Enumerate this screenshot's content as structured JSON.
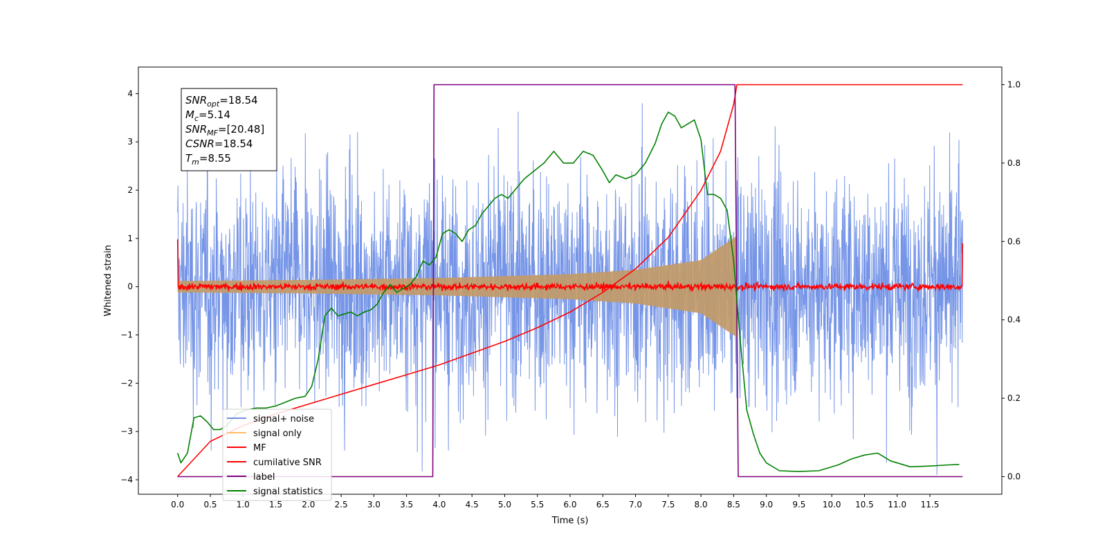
{
  "chart_data": {
    "type": "line",
    "xlabel": "Time (s)",
    "ylabel_left": "Whitened strain",
    "ylabel_right": "",
    "xlim": [
      -0.6,
      12.6
    ],
    "ylim_left": [
      -4.3,
      4.55
    ],
    "ylim_right": [
      -0.045,
      1.045
    ],
    "x_ticks": [
      "0.0",
      "0.5",
      "1.0",
      "1.5",
      "2.0",
      "2.5",
      "3.0",
      "3.5",
      "4.0",
      "4.5",
      "5.0",
      "5.5",
      "6.0",
      "6.5",
      "7.0",
      "7.5",
      "8.0",
      "8.5",
      "9.0",
      "9.5",
      "10.0",
      "10.5",
      "11.0",
      "11.5"
    ],
    "y_ticks_left": [
      "−4",
      "−3",
      "−2",
      "−1",
      "0",
      "1",
      "2",
      "3",
      "4"
    ],
    "y_ticks_right": [
      "0.0",
      "0.2",
      "0.4",
      "0.6",
      "0.8",
      "1.0"
    ],
    "grid": false,
    "legend_position": "lower-left",
    "info_box": [
      {
        "sym": "SNR",
        "sub": "opt",
        "value": "=18.54"
      },
      {
        "sym": "M",
        "sub": "c",
        "value": "=5.14"
      },
      {
        "sym": "SNR",
        "sub": "MF",
        "value": "=[20.48]"
      },
      {
        "sym": "CSNR",
        "sub": "",
        "value": "=18.54"
      },
      {
        "sym": "T",
        "sub": "m",
        "value": "=8.55"
      }
    ],
    "series": [
      {
        "name": "signal+ noise",
        "axis": "left",
        "color": "#6f8fe6",
        "x_range": [
          0.0,
          12.0
        ],
        "typical_amplitude": [
          -2.6,
          2.6
        ],
        "peak_amplitude": [
          -3.9,
          4.0
        ]
      },
      {
        "name": "signal only",
        "axis": "left",
        "color": "#ffbb66",
        "x_range": [
          0.0,
          8.55
        ],
        "envelope_amplitude": [
          [
            0.0,
            0.12
          ],
          [
            2.0,
            0.14
          ],
          [
            4.0,
            0.18
          ],
          [
            6.0,
            0.26
          ],
          [
            7.0,
            0.35
          ],
          [
            8.0,
            0.55
          ],
          [
            8.55,
            1.05
          ]
        ]
      },
      {
        "name": "MF",
        "axis": "left",
        "color": "#ff0000",
        "x_range": [
          0.0,
          12.0
        ],
        "baseline": 0.0,
        "noise_amplitude": 0.1,
        "edge_values": [
          0.98,
          0.9
        ]
      },
      {
        "name": "cumilative SNR",
        "axis": "right",
        "color": "#ff0000",
        "x": [
          0.0,
          0.5,
          1.0,
          1.5,
          2.0,
          2.5,
          3.0,
          3.5,
          4.0,
          4.5,
          5.0,
          5.5,
          6.0,
          6.5,
          7.0,
          7.5,
          8.0,
          8.3,
          8.5,
          8.55,
          12.0
        ],
        "y": [
          0.0,
          0.09,
          0.13,
          0.16,
          0.185,
          0.21,
          0.235,
          0.26,
          0.285,
          0.315,
          0.345,
          0.38,
          0.42,
          0.47,
          0.53,
          0.61,
          0.73,
          0.83,
          0.95,
          1.0,
          1.0
        ]
      },
      {
        "name": "label",
        "axis": "right",
        "color": "#800080",
        "x": [
          0.0,
          3.9,
          3.92,
          8.52,
          8.57,
          12.0
        ],
        "y": [
          0.0,
          0.0,
          1.0,
          1.0,
          0.0,
          0.0
        ]
      },
      {
        "name": "signal statistics",
        "axis": "right",
        "color": "#008000",
        "x": [
          0.0,
          0.05,
          0.15,
          0.25,
          0.35,
          0.45,
          0.55,
          0.65,
          0.75,
          0.9,
          1.05,
          1.2,
          1.35,
          1.5,
          1.65,
          1.8,
          1.95,
          2.05,
          2.15,
          2.25,
          2.35,
          2.45,
          2.55,
          2.65,
          2.75,
          2.85,
          2.95,
          3.05,
          3.15,
          3.25,
          3.35,
          3.45,
          3.55,
          3.65,
          3.75,
          3.85,
          3.95,
          4.05,
          4.15,
          4.25,
          4.35,
          4.45,
          4.55,
          4.65,
          4.75,
          4.85,
          4.95,
          5.05,
          5.15,
          5.3,
          5.45,
          5.6,
          5.75,
          5.9,
          6.05,
          6.2,
          6.35,
          6.5,
          6.6,
          6.7,
          6.85,
          7.0,
          7.15,
          7.3,
          7.4,
          7.5,
          7.6,
          7.7,
          7.8,
          7.9,
          8.0,
          8.1,
          8.2,
          8.3,
          8.4,
          8.5,
          8.6,
          8.7,
          8.8,
          8.9,
          9.0,
          9.2,
          9.5,
          9.8,
          10.1,
          10.3,
          10.5,
          10.7,
          10.9,
          11.2,
          11.5,
          11.8,
          11.95
        ],
        "y": [
          0.06,
          0.035,
          0.06,
          0.15,
          0.155,
          0.14,
          0.12,
          0.12,
          0.13,
          0.16,
          0.17,
          0.175,
          0.175,
          0.18,
          0.19,
          0.2,
          0.205,
          0.23,
          0.3,
          0.41,
          0.43,
          0.41,
          0.415,
          0.42,
          0.41,
          0.42,
          0.425,
          0.44,
          0.47,
          0.49,
          0.47,
          0.48,
          0.49,
          0.51,
          0.55,
          0.54,
          0.56,
          0.62,
          0.63,
          0.62,
          0.6,
          0.63,
          0.64,
          0.67,
          0.69,
          0.71,
          0.72,
          0.71,
          0.73,
          0.76,
          0.78,
          0.8,
          0.83,
          0.8,
          0.8,
          0.83,
          0.82,
          0.78,
          0.75,
          0.77,
          0.76,
          0.77,
          0.8,
          0.85,
          0.9,
          0.93,
          0.92,
          0.89,
          0.9,
          0.91,
          0.86,
          0.72,
          0.72,
          0.71,
          0.68,
          0.55,
          0.35,
          0.17,
          0.11,
          0.06,
          0.035,
          0.015,
          0.013,
          0.015,
          0.03,
          0.045,
          0.055,
          0.06,
          0.04,
          0.025,
          0.027,
          0.03,
          0.031
        ]
      }
    ]
  }
}
